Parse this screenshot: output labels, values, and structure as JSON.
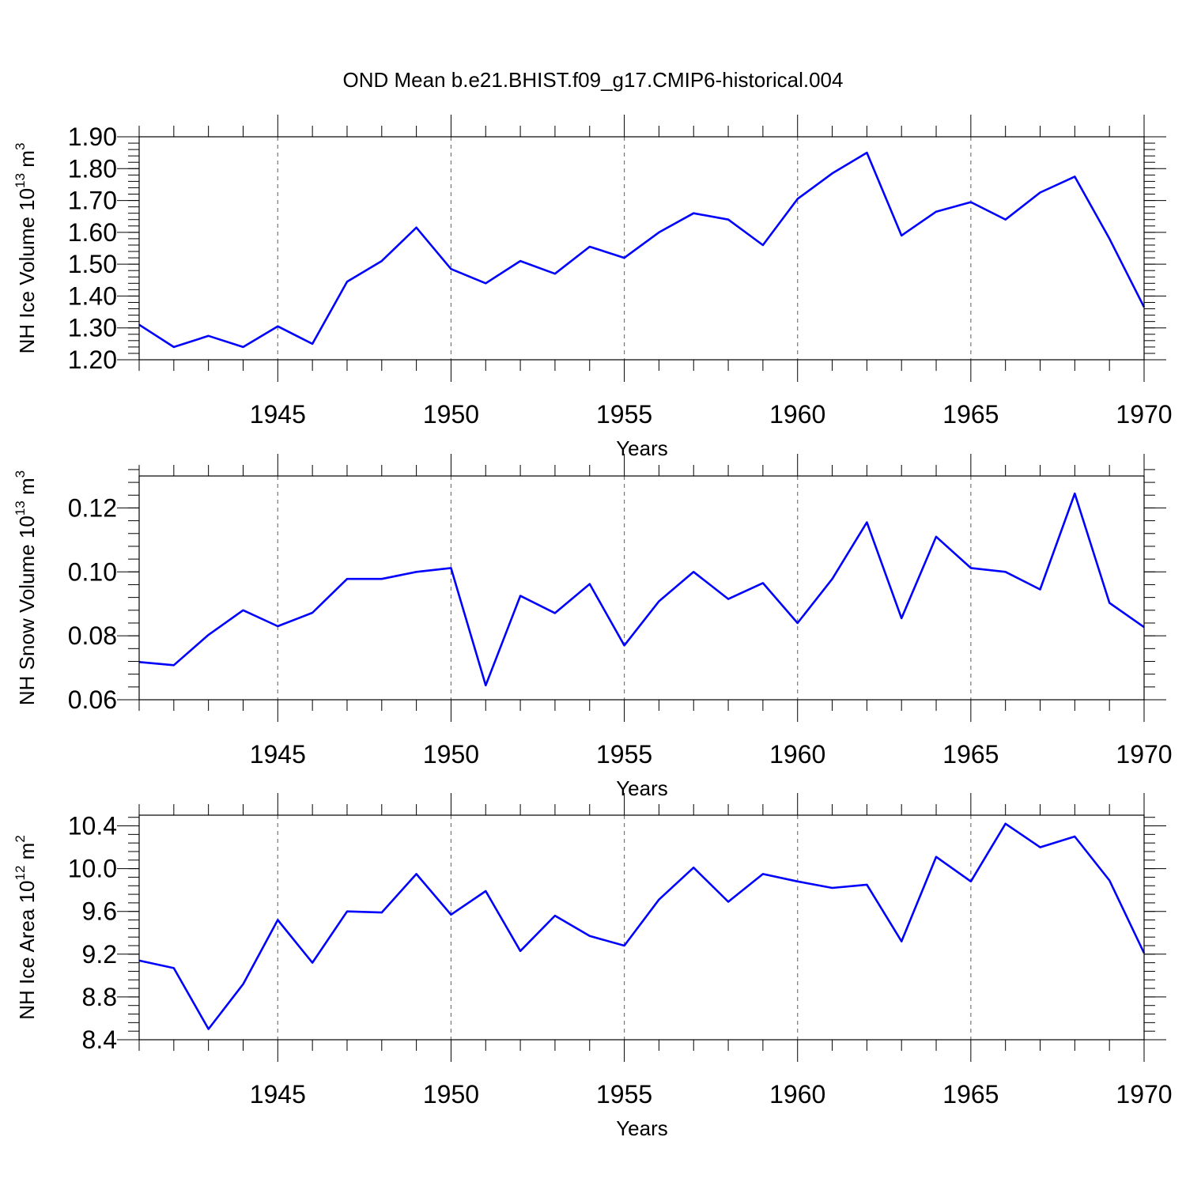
{
  "chart_data": [
    {
      "type": "line",
      "title": "OND Mean b.e21.BHIST.f09_g17.CMIP6-historical.004",
      "xlabel": "Years",
      "ylabel": {
        "main": "NH Ice Volume 10",
        "exp": "13",
        "unit": " m",
        "unit_exp": "3"
      },
      "x": [
        1941,
        1942,
        1943,
        1944,
        1945,
        1946,
        1947,
        1948,
        1949,
        1950,
        1951,
        1952,
        1953,
        1954,
        1955,
        1956,
        1957,
        1958,
        1959,
        1960,
        1961,
        1962,
        1963,
        1964,
        1965,
        1966,
        1967,
        1968,
        1969,
        1970
      ],
      "xlim": [
        1941,
        1970
      ],
      "xticks": [
        1945,
        1950,
        1955,
        1960,
        1965,
        1970
      ],
      "ylim": [
        1.2,
        1.9
      ],
      "yticks": [
        1.2,
        1.3,
        1.4,
        1.5,
        1.6,
        1.7,
        1.8,
        1.9
      ],
      "ytick_labels": [
        "1.20",
        "1.30",
        "1.40",
        "1.50",
        "1.60",
        "1.70",
        "1.80",
        "1.90"
      ],
      "y_minor_step": 0.02,
      "vlines": [
        1945,
        1950,
        1955,
        1960,
        1965
      ],
      "series": [
        {
          "name": "NH Ice Volume",
          "color": "#0000ff",
          "values": [
            1.31,
            1.24,
            1.275,
            1.24,
            1.305,
            1.25,
            1.445,
            1.51,
            1.615,
            1.485,
            1.44,
            1.51,
            1.47,
            1.555,
            1.52,
            1.6,
            1.66,
            1.64,
            1.56,
            1.705,
            1.785,
            1.85,
            1.59,
            1.665,
            1.695,
            1.64,
            1.725,
            1.775,
            1.58,
            1.365
          ]
        }
      ]
    },
    {
      "type": "line",
      "title": "",
      "xlabel": "Years",
      "ylabel": {
        "main": "NH Snow Volume 10",
        "exp": "13",
        "unit": " m",
        "unit_exp": "3"
      },
      "x": [
        1941,
        1942,
        1943,
        1944,
        1945,
        1946,
        1947,
        1948,
        1949,
        1950,
        1951,
        1952,
        1953,
        1954,
        1955,
        1956,
        1957,
        1958,
        1959,
        1960,
        1961,
        1962,
        1963,
        1964,
        1965,
        1966,
        1967,
        1968,
        1969,
        1970
      ],
      "xlim": [
        1941,
        1970
      ],
      "xticks": [
        1945,
        1950,
        1955,
        1960,
        1965,
        1970
      ],
      "ylim": [
        0.06,
        0.13
      ],
      "yticks": [
        0.06,
        0.08,
        0.1,
        0.12
      ],
      "ytick_labels": [
        "0.06",
        "0.08",
        "0.10",
        "0.12"
      ],
      "y_minor_step": 0.004,
      "vlines": [
        1945,
        1950,
        1955,
        1960,
        1965
      ],
      "series": [
        {
          "name": "NH Snow Volume",
          "color": "#0000ff",
          "values": [
            0.0718,
            0.0708,
            0.0803,
            0.088,
            0.083,
            0.0872,
            0.0978,
            0.0978,
            0.1,
            0.1012,
            0.0645,
            0.0925,
            0.0871,
            0.0962,
            0.077,
            0.0908,
            0.1,
            0.0915,
            0.0965,
            0.084,
            0.0978,
            0.1155,
            0.0855,
            0.111,
            0.1012,
            0.1,
            0.0945,
            0.1245,
            0.0903,
            0.0827
          ]
        }
      ]
    },
    {
      "type": "line",
      "title": "",
      "xlabel": "Years",
      "ylabel": {
        "main": "NH Ice Area 10",
        "exp": "12",
        "unit": " m",
        "unit_exp": "2"
      },
      "x": [
        1941,
        1942,
        1943,
        1944,
        1945,
        1946,
        1947,
        1948,
        1949,
        1950,
        1951,
        1952,
        1953,
        1954,
        1955,
        1956,
        1957,
        1958,
        1959,
        1960,
        1961,
        1962,
        1963,
        1964,
        1965,
        1966,
        1967,
        1968,
        1969,
        1970
      ],
      "xlim": [
        1941,
        1970
      ],
      "xticks": [
        1945,
        1950,
        1955,
        1960,
        1965,
        1970
      ],
      "ylim": [
        8.4,
        10.5
      ],
      "yticks": [
        8.4,
        8.8,
        9.2,
        9.6,
        10.0,
        10.4
      ],
      "ytick_labels": [
        "8.4",
        "8.8",
        "9.2",
        "9.6",
        "10.0",
        "10.4"
      ],
      "y_minor_step": 0.08,
      "vlines": [
        1945,
        1950,
        1955,
        1960,
        1965
      ],
      "series": [
        {
          "name": "NH Ice Area",
          "color": "#0000ff",
          "values": [
            9.14,
            9.07,
            8.5,
            8.92,
            9.52,
            9.12,
            9.6,
            9.59,
            9.95,
            9.57,
            9.79,
            9.23,
            9.56,
            9.37,
            9.28,
            9.71,
            10.01,
            9.69,
            9.95,
            9.88,
            9.82,
            9.85,
            9.32,
            10.11,
            9.88,
            10.42,
            10.2,
            10.3,
            9.89,
            9.21
          ]
        }
      ]
    }
  ]
}
